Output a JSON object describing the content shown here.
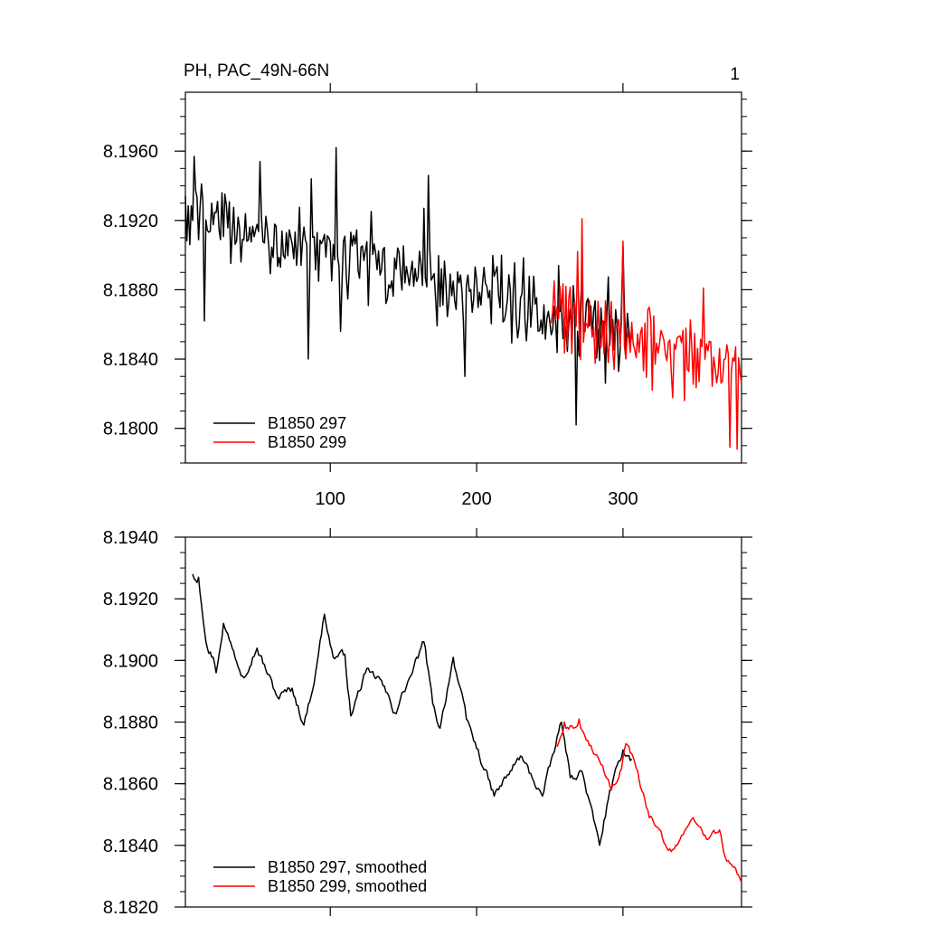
{
  "chart_data": [
    {
      "type": "line",
      "title": "PH, PAC_49N-66N",
      "corner_label": "1",
      "xlim": [
        1,
        381
      ],
      "ylim": [
        8.178,
        8.1994
      ],
      "x_ticks": [
        100,
        200,
        300
      ],
      "x_tick_labels": [
        "100",
        "200",
        "300"
      ],
      "y_ticks": [
        8.196,
        8.192,
        8.188,
        8.184,
        8.18
      ],
      "y_tick_labels": [
        "8.1960",
        "8.1920",
        "8.1880",
        "8.1840",
        "8.1800"
      ],
      "grid": false,
      "legend_position": "bottom-left",
      "series": [
        {
          "name": "B1850 297",
          "color": "#000000",
          "x_start": 1,
          "x_end": 306,
          "trend_start": 8.1925,
          "trend_end": 8.1855,
          "noise": 0.0022,
          "seed": 297,
          "anchors": [
            [
              1,
              8.1934
            ],
            [
              4,
              8.1906
            ],
            [
              7,
              8.1957
            ],
            [
              14,
              8.1862
            ],
            [
              19,
              8.193
            ],
            [
              26,
              8.1936
            ],
            [
              52,
              8.1954
            ],
            [
              85,
              8.184
            ],
            [
              87,
              8.1944
            ],
            [
              104,
              8.1962
            ],
            [
              107,
              8.1856
            ],
            [
              164,
              8.1927
            ],
            [
              167,
              8.1946
            ],
            [
              192,
              8.183
            ],
            [
              268,
              8.1802
            ],
            [
              288,
              8.1826
            ],
            [
              300,
              8.1905
            ]
          ]
        },
        {
          "name": "B1850 299",
          "color": "#ff0000",
          "x_start": 250,
          "x_end": 381,
          "trend_start": 8.1866,
          "trend_end": 8.1834,
          "noise": 0.0024,
          "seed": 299,
          "anchors": [
            [
              250,
              8.1861
            ],
            [
              253,
              8.1885
            ],
            [
              269,
              8.1902
            ],
            [
              272,
              8.1921
            ],
            [
              290,
              8.1838
            ],
            [
              300,
              8.1908
            ],
            [
              320,
              8.1822
            ],
            [
              342,
              8.1816
            ],
            [
              355,
              8.1881
            ],
            [
              373,
              8.1789
            ],
            [
              377,
              8.1847
            ],
            [
              378,
              8.1788
            ],
            [
              381,
              8.1826
            ]
          ]
        }
      ]
    },
    {
      "type": "line",
      "title": "",
      "xlim": [
        1,
        381
      ],
      "ylim": [
        8.182,
        8.194
      ],
      "x_ticks": [
        100,
        200,
        300
      ],
      "x_tick_labels": [],
      "y_ticks": [
        8.194,
        8.192,
        8.19,
        8.188,
        8.186,
        8.184,
        8.182
      ],
      "y_tick_labels": [
        "8.1940",
        "8.1920",
        "8.1900",
        "8.1880",
        "8.1860",
        "8.1840",
        "8.1820"
      ],
      "grid": false,
      "legend_position": "bottom-left",
      "series": [
        {
          "name": "B1850 297, smoothed",
          "color": "#000000",
          "x_start": 6,
          "x_end": 306,
          "noise": 0.0005,
          "seed": 97,
          "anchors": [
            [
              6,
              8.1928
            ],
            [
              8,
              8.1926
            ],
            [
              10,
              8.1927
            ],
            [
              16,
              8.1904
            ],
            [
              20,
              8.1901
            ],
            [
              22,
              8.1896
            ],
            [
              27,
              8.1912
            ],
            [
              33,
              8.1904
            ],
            [
              40,
              8.1895
            ],
            [
              50,
              8.1904
            ],
            [
              64,
              8.1888
            ],
            [
              74,
              8.1891
            ],
            [
              82,
              8.1879
            ],
            [
              90,
              8.1896
            ],
            [
              96,
              8.1915
            ],
            [
              102,
              8.1901
            ],
            [
              110,
              8.1902
            ],
            [
              114,
              8.1882
            ],
            [
              124,
              8.1896
            ],
            [
              134,
              8.1894
            ],
            [
              144,
              8.1883
            ],
            [
              155,
              8.1895
            ],
            [
              164,
              8.1906
            ],
            [
              170,
              8.1886
            ],
            [
              175,
              8.1878
            ],
            [
              184,
              8.1901
            ],
            [
              193,
              8.1881
            ],
            [
              212,
              8.1856
            ],
            [
              230,
              8.1869
            ],
            [
              245,
              8.1856
            ],
            [
              258,
              8.188
            ],
            [
              264,
              8.1862
            ],
            [
              272,
              8.1864
            ],
            [
              284,
              8.184
            ],
            [
              290,
              8.1855
            ],
            [
              300,
              8.1871
            ],
            [
              306,
              8.1868
            ]
          ]
        },
        {
          "name": "B1850 299, smoothed",
          "color": "#ff0000",
          "x_start": 255,
          "x_end": 381,
          "noise": 0.0004,
          "seed": 199,
          "anchors": [
            [
              255,
              8.1872
            ],
            [
              260,
              8.188
            ],
            [
              266,
              8.1878
            ],
            [
              270,
              8.1881
            ],
            [
              276,
              8.1874
            ],
            [
              286,
              8.1866
            ],
            [
              292,
              8.1858
            ],
            [
              298,
              8.1864
            ],
            [
              302,
              8.1873
            ],
            [
              308,
              8.1867
            ],
            [
              318,
              8.1849
            ],
            [
              333,
              8.1838
            ],
            [
              348,
              8.1849
            ],
            [
              357,
              8.1842
            ],
            [
              366,
              8.1845
            ],
            [
              370,
              8.1836
            ],
            [
              376,
              8.1833
            ],
            [
              381,
              8.1828
            ]
          ]
        }
      ]
    }
  ]
}
